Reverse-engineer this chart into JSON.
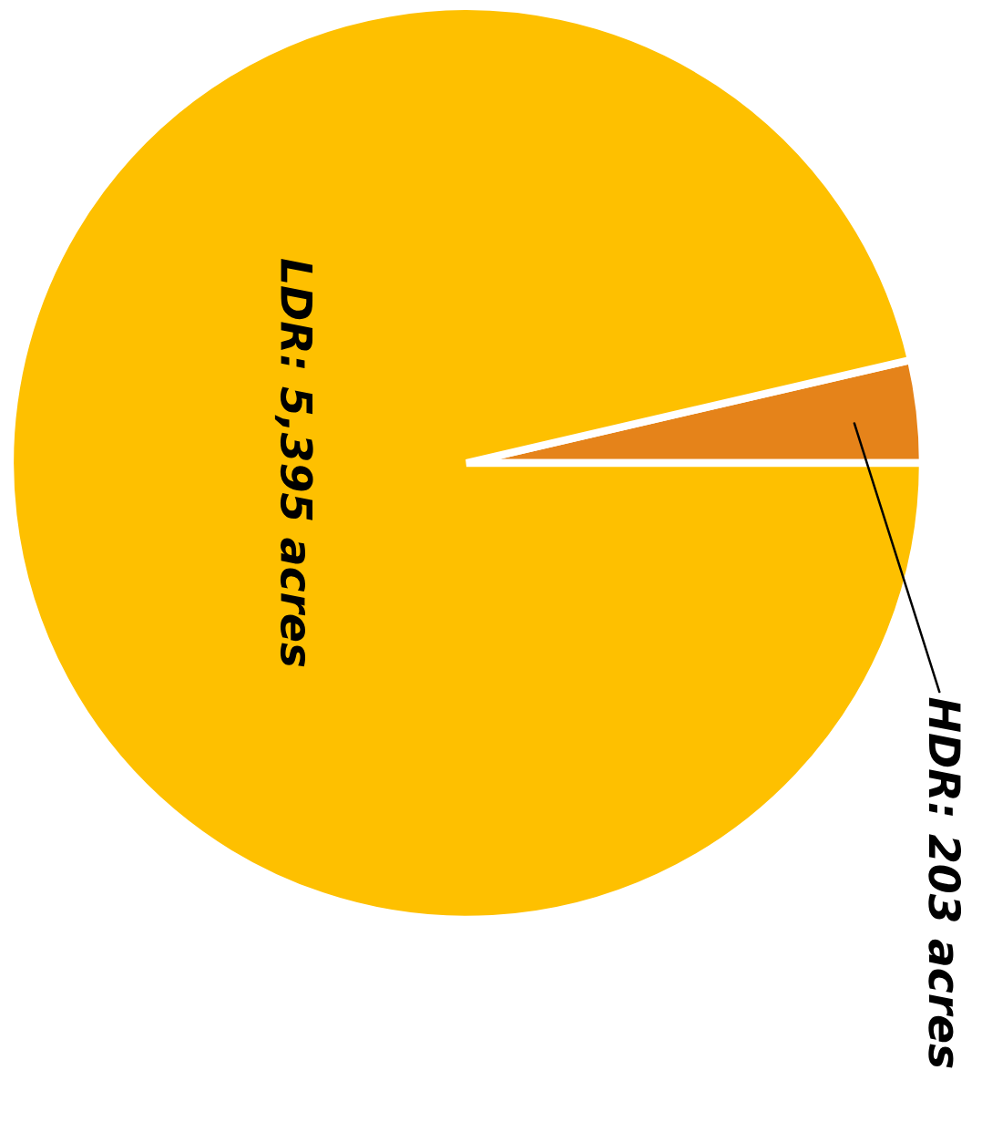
{
  "chart_data": {
    "type": "pie",
    "categories": [
      "HDR",
      "LDR"
    ],
    "values": [
      203,
      5395
    ],
    "value_labels": [
      "203 acres",
      "5,395 acres"
    ],
    "colors": [
      "#e5831a",
      "#fec000"
    ],
    "legend": false
  }
}
